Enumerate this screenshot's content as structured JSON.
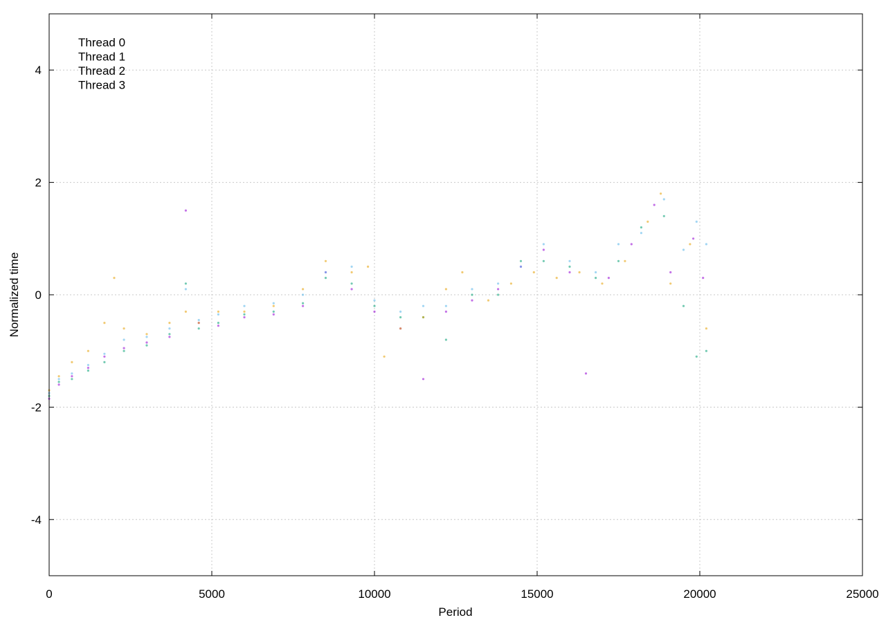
{
  "chart_data": {
    "type": "scatter",
    "title": "",
    "xlabel": "Period",
    "ylabel": "Normalized time",
    "xlim": [
      0,
      25000
    ],
    "ylim": [
      -5,
      5
    ],
    "x_ticks": [
      0,
      5000,
      10000,
      15000,
      20000,
      25000
    ],
    "x_tick_labels": [
      "0",
      "5000",
      "10000",
      "15000",
      "20000",
      "25000"
    ],
    "y_ticks": [
      -4,
      -2,
      0,
      2,
      4
    ],
    "y_tick_labels": [
      "-4",
      "-2",
      "0",
      "2",
      "4"
    ],
    "grid": true,
    "legend_position": "top-left",
    "series": [
      {
        "name": "Thread 0",
        "color": "#9400d3",
        "points": [
          [
            0,
            -1.85
          ],
          [
            300,
            -1.6
          ],
          [
            700,
            -1.45
          ],
          [
            1200,
            -1.3
          ],
          [
            1700,
            -1.1
          ],
          [
            2300,
            -0.95
          ],
          [
            3000,
            -0.85
          ],
          [
            3700,
            -0.75
          ],
          [
            4200,
            1.5
          ],
          [
            4600,
            -0.5
          ],
          [
            5200,
            -0.55
          ],
          [
            6000,
            -0.4
          ],
          [
            6900,
            -0.35
          ],
          [
            7800,
            -0.2
          ],
          [
            8500,
            0.4
          ],
          [
            9300,
            0.1
          ],
          [
            10000,
            -0.3
          ],
          [
            10800,
            -0.6
          ],
          [
            11500,
            -1.5
          ],
          [
            12200,
            -0.3
          ],
          [
            13000,
            -0.1
          ],
          [
            13800,
            0.1
          ],
          [
            14500,
            0.5
          ],
          [
            15200,
            0.8
          ],
          [
            16000,
            0.4
          ],
          [
            16500,
            -1.4
          ],
          [
            17200,
            0.3
          ],
          [
            17900,
            0.9
          ],
          [
            18600,
            1.6
          ],
          [
            19100,
            0.4
          ],
          [
            19800,
            1.0
          ],
          [
            20100,
            0.3
          ]
        ]
      },
      {
        "name": "Thread 1",
        "color": "#009e73",
        "points": [
          [
            0,
            -1.8
          ],
          [
            300,
            -1.55
          ],
          [
            700,
            -1.5
          ],
          [
            1200,
            -1.35
          ],
          [
            1700,
            -1.2
          ],
          [
            2300,
            -1.0
          ],
          [
            3000,
            -0.9
          ],
          [
            3700,
            -0.7
          ],
          [
            4200,
            0.2
          ],
          [
            4600,
            -0.6
          ],
          [
            5200,
            -0.5
          ],
          [
            6000,
            -0.35
          ],
          [
            6900,
            -0.3
          ],
          [
            7800,
            -0.15
          ],
          [
            8500,
            0.3
          ],
          [
            9300,
            0.2
          ],
          [
            10000,
            -0.2
          ],
          [
            10800,
            -0.4
          ],
          [
            11500,
            -0.4
          ],
          [
            12200,
            -0.8
          ],
          [
            13000,
            0.0
          ],
          [
            13800,
            0.0
          ],
          [
            14500,
            0.6
          ],
          [
            15200,
            0.6
          ],
          [
            16000,
            0.5
          ],
          [
            16800,
            0.3
          ],
          [
            17500,
            0.6
          ],
          [
            18200,
            1.2
          ],
          [
            18900,
            1.4
          ],
          [
            19500,
            -0.2
          ],
          [
            19900,
            -1.1
          ],
          [
            20200,
            -1.0
          ]
        ]
      },
      {
        "name": "Thread 2",
        "color": "#56b4e9",
        "points": [
          [
            0,
            -1.75
          ],
          [
            300,
            -1.5
          ],
          [
            700,
            -1.4
          ],
          [
            1200,
            -1.25
          ],
          [
            1700,
            -1.05
          ],
          [
            2300,
            -0.8
          ],
          [
            3000,
            -0.75
          ],
          [
            3700,
            -0.6
          ],
          [
            4200,
            0.1
          ],
          [
            4600,
            -0.45
          ],
          [
            5200,
            -0.35
          ],
          [
            6000,
            -0.2
          ],
          [
            6900,
            -0.15
          ],
          [
            7800,
            0.0
          ],
          [
            8500,
            0.4
          ],
          [
            9300,
            0.5
          ],
          [
            10000,
            -0.1
          ],
          [
            10800,
            -0.3
          ],
          [
            11500,
            -0.2
          ],
          [
            12200,
            -0.2
          ],
          [
            13000,
            0.1
          ],
          [
            13800,
            0.2
          ],
          [
            14500,
            0.5
          ],
          [
            15200,
            0.9
          ],
          [
            16000,
            0.6
          ],
          [
            16800,
            0.4
          ],
          [
            17500,
            0.9
          ],
          [
            18200,
            1.1
          ],
          [
            18900,
            1.7
          ],
          [
            19500,
            0.8
          ],
          [
            19900,
            1.3
          ],
          [
            20200,
            0.9
          ]
        ]
      },
      {
        "name": "Thread 3",
        "color": "#e69f00",
        "points": [
          [
            0,
            -1.7
          ],
          [
            300,
            -1.45
          ],
          [
            700,
            -1.2
          ],
          [
            1200,
            -1.0
          ],
          [
            1700,
            -0.5
          ],
          [
            2000,
            0.3
          ],
          [
            2300,
            -0.6
          ],
          [
            3000,
            -0.7
          ],
          [
            3700,
            -0.5
          ],
          [
            4200,
            -0.3
          ],
          [
            4600,
            -0.5
          ],
          [
            5200,
            -0.3
          ],
          [
            6000,
            -0.3
          ],
          [
            6900,
            -0.2
          ],
          [
            7800,
            0.1
          ],
          [
            8500,
            0.6
          ],
          [
            9300,
            0.4
          ],
          [
            9800,
            0.5
          ],
          [
            10300,
            -1.1
          ],
          [
            10800,
            -0.6
          ],
          [
            11500,
            -0.4
          ],
          [
            12200,
            0.1
          ],
          [
            12700,
            0.4
          ],
          [
            13500,
            -0.1
          ],
          [
            14200,
            0.2
          ],
          [
            14900,
            0.4
          ],
          [
            15600,
            0.3
          ],
          [
            16300,
            0.4
          ],
          [
            17000,
            0.2
          ],
          [
            17700,
            0.6
          ],
          [
            18400,
            1.3
          ],
          [
            18800,
            1.8
          ],
          [
            19100,
            0.2
          ],
          [
            19700,
            0.9
          ],
          [
            20200,
            -0.6
          ]
        ]
      }
    ],
    "legend_entries": [
      "Thread 0",
      "Thread 1",
      "Thread 2",
      "Thread 3"
    ]
  }
}
